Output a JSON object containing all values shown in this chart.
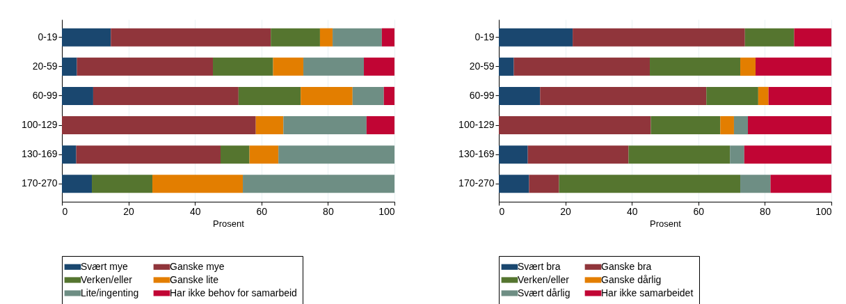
{
  "chart_data": [
    {
      "type": "bar",
      "orientation": "horizontal",
      "stacked": true,
      "xlabel": "Prosent",
      "categories": [
        "0-19",
        "20-59",
        "60-99",
        "100-129",
        "130-169",
        "170-270"
      ],
      "xlim": [
        0,
        100
      ],
      "xticks": [
        0,
        20,
        40,
        60,
        80,
        100
      ],
      "grid": "x",
      "legend": "bottom",
      "series": [
        {
          "name": "Svært mye",
          "color": "#1a476f",
          "values": [
            14.7,
            4.5,
            9.4,
            0,
            4.3,
            9.0
          ]
        },
        {
          "name": "Ganske mye",
          "color": "#90353b",
          "values": [
            48.1,
            40.9,
            43.7,
            58.3,
            43.4,
            0
          ]
        },
        {
          "name": "Verken/eller",
          "color": "#55752f",
          "values": [
            14.8,
            18.1,
            18.7,
            0,
            8.7,
            18.2
          ]
        },
        {
          "name": "Ganske lite",
          "color": "#e37e00",
          "values": [
            3.8,
            9.1,
            15.6,
            8.3,
            8.7,
            27.2
          ]
        },
        {
          "name": "Lite/ingenting",
          "color": "#6e8e84",
          "values": [
            14.8,
            18.2,
            9.4,
            25.0,
            34.9,
            45.6
          ]
        },
        {
          "name": "Har ikke behov for samarbeid",
          "color": "#c10534",
          "values": [
            3.8,
            9.2,
            3.2,
            8.4,
            0,
            0
          ]
        }
      ]
    },
    {
      "type": "bar",
      "orientation": "horizontal",
      "stacked": true,
      "xlabel": "Prosent",
      "categories": [
        "0-19",
        "20-59",
        "60-99",
        "100-129",
        "130-169",
        "170-270"
      ],
      "xlim": [
        0,
        100
      ],
      "xticks": [
        0,
        20,
        40,
        60,
        80,
        100
      ],
      "grid": "x",
      "legend": "bottom",
      "series": [
        {
          "name": "Svært bra",
          "color": "#1a476f",
          "values": [
            22.2,
            4.5,
            12.4,
            0,
            8.7,
            9.1
          ]
        },
        {
          "name": "Ganske bra",
          "color": "#90353b",
          "values": [
            51.8,
            40.9,
            50.0,
            45.7,
            30.3,
            9.0
          ]
        },
        {
          "name": "Verken/eller",
          "color": "#55752f",
          "values": [
            14.8,
            27.2,
            15.6,
            20.9,
            30.5,
            54.5
          ]
        },
        {
          "name": "Ganske dårlig",
          "color": "#e37e00",
          "values": [
            0,
            4.6,
            3.1,
            4.1,
            0,
            0
          ]
        },
        {
          "name": "Svært dårlig",
          "color": "#6e8e84",
          "values": [
            0,
            0,
            0,
            4.2,
            4.3,
            9.1
          ]
        },
        {
          "name": "Har ikke samarbeidet",
          "color": "#c10534",
          "values": [
            11.2,
            22.8,
            18.9,
            25.1,
            26.2,
            18.3
          ]
        }
      ]
    }
  ]
}
